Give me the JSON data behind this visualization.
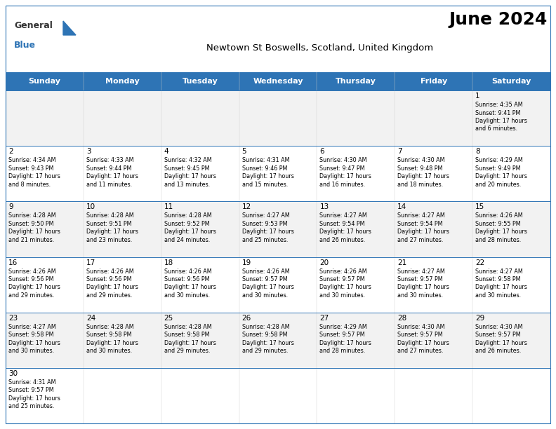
{
  "title": "June 2024",
  "subtitle": "Newtown St Boswells, Scotland, United Kingdom",
  "header_bg": "#2E74B5",
  "header_text_color": "#FFFFFF",
  "day_names": [
    "Sunday",
    "Monday",
    "Tuesday",
    "Wednesday",
    "Thursday",
    "Friday",
    "Saturday"
  ],
  "row_bg_odd": "#F2F2F2",
  "row_bg_even": "#FFFFFF",
  "cell_text_color": "#000000",
  "grid_color": "#2E74B5",
  "days": [
    {
      "day": 1,
      "col": 6,
      "row": 0,
      "sunrise": "4:35 AM",
      "sunset": "9:41 PM",
      "daylight": "17 hours and 6 minutes."
    },
    {
      "day": 2,
      "col": 0,
      "row": 1,
      "sunrise": "4:34 AM",
      "sunset": "9:43 PM",
      "daylight": "17 hours and 8 minutes."
    },
    {
      "day": 3,
      "col": 1,
      "row": 1,
      "sunrise": "4:33 AM",
      "sunset": "9:44 PM",
      "daylight": "17 hours and 11 minutes."
    },
    {
      "day": 4,
      "col": 2,
      "row": 1,
      "sunrise": "4:32 AM",
      "sunset": "9:45 PM",
      "daylight": "17 hours and 13 minutes."
    },
    {
      "day": 5,
      "col": 3,
      "row": 1,
      "sunrise": "4:31 AM",
      "sunset": "9:46 PM",
      "daylight": "17 hours and 15 minutes."
    },
    {
      "day": 6,
      "col": 4,
      "row": 1,
      "sunrise": "4:30 AM",
      "sunset": "9:47 PM",
      "daylight": "17 hours and 16 minutes."
    },
    {
      "day": 7,
      "col": 5,
      "row": 1,
      "sunrise": "4:30 AM",
      "sunset": "9:48 PM",
      "daylight": "17 hours and 18 minutes."
    },
    {
      "day": 8,
      "col": 6,
      "row": 1,
      "sunrise": "4:29 AM",
      "sunset": "9:49 PM",
      "daylight": "17 hours and 20 minutes."
    },
    {
      "day": 9,
      "col": 0,
      "row": 2,
      "sunrise": "4:28 AM",
      "sunset": "9:50 PM",
      "daylight": "17 hours and 21 minutes."
    },
    {
      "day": 10,
      "col": 1,
      "row": 2,
      "sunrise": "4:28 AM",
      "sunset": "9:51 PM",
      "daylight": "17 hours and 23 minutes."
    },
    {
      "day": 11,
      "col": 2,
      "row": 2,
      "sunrise": "4:28 AM",
      "sunset": "9:52 PM",
      "daylight": "17 hours and 24 minutes."
    },
    {
      "day": 12,
      "col": 3,
      "row": 2,
      "sunrise": "4:27 AM",
      "sunset": "9:53 PM",
      "daylight": "17 hours and 25 minutes."
    },
    {
      "day": 13,
      "col": 4,
      "row": 2,
      "sunrise": "4:27 AM",
      "sunset": "9:54 PM",
      "daylight": "17 hours and 26 minutes."
    },
    {
      "day": 14,
      "col": 5,
      "row": 2,
      "sunrise": "4:27 AM",
      "sunset": "9:54 PM",
      "daylight": "17 hours and 27 minutes."
    },
    {
      "day": 15,
      "col": 6,
      "row": 2,
      "sunrise": "4:26 AM",
      "sunset": "9:55 PM",
      "daylight": "17 hours and 28 minutes."
    },
    {
      "day": 16,
      "col": 0,
      "row": 3,
      "sunrise": "4:26 AM",
      "sunset": "9:56 PM",
      "daylight": "17 hours and 29 minutes."
    },
    {
      "day": 17,
      "col": 1,
      "row": 3,
      "sunrise": "4:26 AM",
      "sunset": "9:56 PM",
      "daylight": "17 hours and 29 minutes."
    },
    {
      "day": 18,
      "col": 2,
      "row": 3,
      "sunrise": "4:26 AM",
      "sunset": "9:56 PM",
      "daylight": "17 hours and 30 minutes."
    },
    {
      "day": 19,
      "col": 3,
      "row": 3,
      "sunrise": "4:26 AM",
      "sunset": "9:57 PM",
      "daylight": "17 hours and 30 minutes."
    },
    {
      "day": 20,
      "col": 4,
      "row": 3,
      "sunrise": "4:26 AM",
      "sunset": "9:57 PM",
      "daylight": "17 hours and 30 minutes."
    },
    {
      "day": 21,
      "col": 5,
      "row": 3,
      "sunrise": "4:27 AM",
      "sunset": "9:57 PM",
      "daylight": "17 hours and 30 minutes."
    },
    {
      "day": 22,
      "col": 6,
      "row": 3,
      "sunrise": "4:27 AM",
      "sunset": "9:58 PM",
      "daylight": "17 hours and 30 minutes."
    },
    {
      "day": 23,
      "col": 0,
      "row": 4,
      "sunrise": "4:27 AM",
      "sunset": "9:58 PM",
      "daylight": "17 hours and 30 minutes."
    },
    {
      "day": 24,
      "col": 1,
      "row": 4,
      "sunrise": "4:28 AM",
      "sunset": "9:58 PM",
      "daylight": "17 hours and 30 minutes."
    },
    {
      "day": 25,
      "col": 2,
      "row": 4,
      "sunrise": "4:28 AM",
      "sunset": "9:58 PM",
      "daylight": "17 hours and 29 minutes."
    },
    {
      "day": 26,
      "col": 3,
      "row": 4,
      "sunrise": "4:28 AM",
      "sunset": "9:58 PM",
      "daylight": "17 hours and 29 minutes."
    },
    {
      "day": 27,
      "col": 4,
      "row": 4,
      "sunrise": "4:29 AM",
      "sunset": "9:57 PM",
      "daylight": "17 hours and 28 minutes."
    },
    {
      "day": 28,
      "col": 5,
      "row": 4,
      "sunrise": "4:30 AM",
      "sunset": "9:57 PM",
      "daylight": "17 hours and 27 minutes."
    },
    {
      "day": 29,
      "col": 6,
      "row": 4,
      "sunrise": "4:30 AM",
      "sunset": "9:57 PM",
      "daylight": "17 hours and 26 minutes."
    },
    {
      "day": 30,
      "col": 0,
      "row": 5,
      "sunrise": "4:31 AM",
      "sunset": "9:57 PM",
      "daylight": "17 hours and 25 minutes."
    }
  ]
}
